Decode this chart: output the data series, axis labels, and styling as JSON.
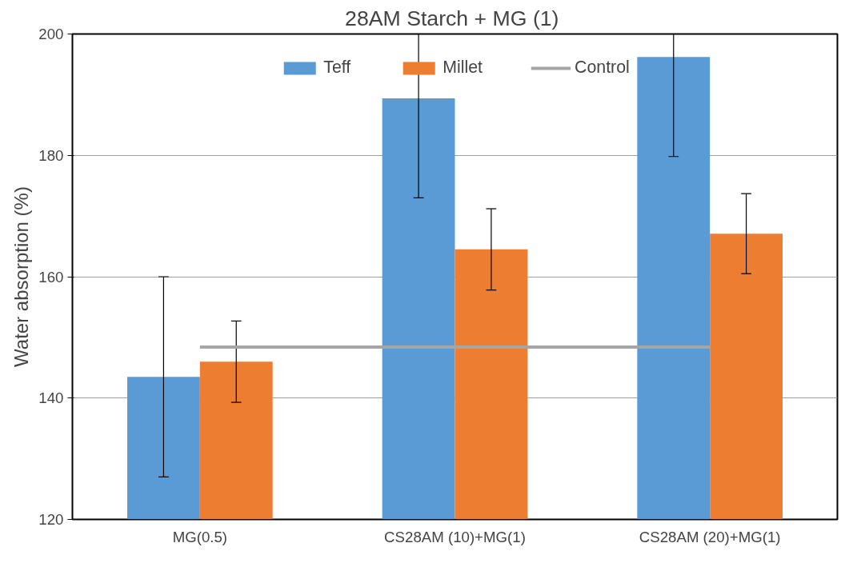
{
  "chart_data": {
    "type": "bar",
    "title": "28AM Starch  + MG (1)",
    "ylabel": "Water absorption (%)",
    "categories": [
      "MG(0.5)",
      "CS28AM (10)+MG(1)",
      "CS28AM (20)+MG(1)"
    ],
    "ylim": [
      120,
      200
    ],
    "yticks": [
      120,
      140,
      160,
      180,
      200
    ],
    "grid": "y",
    "legend": "top",
    "series": [
      {
        "name": "Teff",
        "color": "#5b9bd5",
        "values": [
          143.5,
          189.4,
          196.2
        ],
        "errors": [
          16.5,
          [
            173.0,
            200
          ],
          [
            179.8,
            200
          ]
        ]
      },
      {
        "name": "Millet",
        "color": "#ed7d31",
        "values": [
          146.0,
          164.5,
          167.1
        ],
        "errors": [
          6.7,
          6.7,
          6.6
        ]
      },
      {
        "name": "Control",
        "type": "line",
        "color": "#a5a5a5",
        "values": [
          148.4,
          148.4,
          148.4
        ]
      }
    ]
  }
}
